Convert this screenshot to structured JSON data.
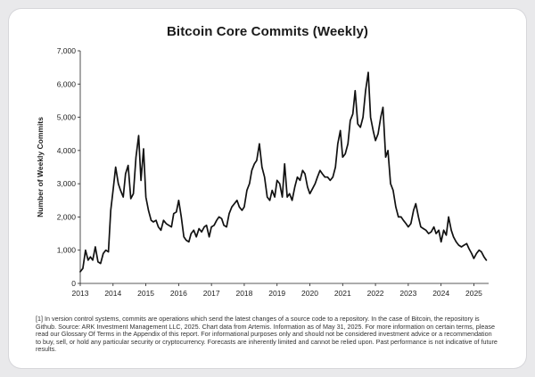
{
  "chart_data": {
    "type": "line",
    "title": "Bitcoin Core Commits (Weekly)",
    "xlabel": "",
    "ylabel": "Number of Weekly Commits",
    "ylim": [
      0,
      7000
    ],
    "xlim": [
      2013,
      2025.45
    ],
    "yticks": [
      0,
      1000,
      2000,
      3000,
      4000,
      5000,
      6000,
      7000
    ],
    "ytick_labels": [
      "0",
      "1,000",
      "2,000",
      "3,000",
      "4,000",
      "5,000",
      "6,000",
      "7,000"
    ],
    "xticks": [
      2013,
      2014,
      2015,
      2016,
      2017,
      2018,
      2019,
      2020,
      2021,
      2022,
      2023,
      2024,
      2025
    ],
    "xtick_labels": [
      "2013",
      "2014",
      "2015",
      "2016",
      "2017",
      "2018",
      "2019",
      "2020",
      "2021",
      "2022",
      "2023",
      "2024",
      "2025"
    ],
    "grid": false,
    "line_color": "#111111",
    "series": [
      {
        "name": "Weekly Commits",
        "x": [
          2013.0,
          2013.08,
          2013.16,
          2013.24,
          2013.31,
          2013.38,
          2013.46,
          2013.54,
          2013.62,
          2013.7,
          2013.78,
          2013.86,
          2013.93,
          2014.0,
          2014.08,
          2014.16,
          2014.23,
          2014.31,
          2014.38,
          2014.46,
          2014.54,
          2014.62,
          2014.7,
          2014.78,
          2014.85,
          2014.93,
          2015.0,
          2015.08,
          2015.16,
          2015.23,
          2015.31,
          2015.38,
          2015.46,
          2015.54,
          2015.62,
          2015.7,
          2015.78,
          2015.85,
          2015.93,
          2016.0,
          2016.08,
          2016.16,
          2016.23,
          2016.31,
          2016.38,
          2016.46,
          2016.54,
          2016.62,
          2016.7,
          2016.78,
          2016.85,
          2016.93,
          2017.0,
          2017.08,
          2017.16,
          2017.23,
          2017.31,
          2017.38,
          2017.46,
          2017.54,
          2017.62,
          2017.7,
          2017.78,
          2017.85,
          2017.93,
          2018.0,
          2018.08,
          2018.16,
          2018.23,
          2018.31,
          2018.38,
          2018.46,
          2018.54,
          2018.62,
          2018.7,
          2018.78,
          2018.85,
          2018.93,
          2019.0,
          2019.08,
          2019.16,
          2019.23,
          2019.31,
          2019.38,
          2019.46,
          2019.54,
          2019.62,
          2019.7,
          2019.78,
          2019.85,
          2019.93,
          2020.0,
          2020.08,
          2020.16,
          2020.23,
          2020.31,
          2020.38,
          2020.46,
          2020.54,
          2020.62,
          2020.7,
          2020.78,
          2020.85,
          2020.93,
          2021.0,
          2021.08,
          2021.16,
          2021.23,
          2021.31,
          2021.38,
          2021.46,
          2021.54,
          2021.62,
          2021.7,
          2021.78,
          2021.85,
          2021.93,
          2022.0,
          2022.08,
          2022.16,
          2022.23,
          2022.31,
          2022.38,
          2022.46,
          2022.54,
          2022.62,
          2022.7,
          2022.78,
          2022.85,
          2022.93,
          2023.0,
          2023.08,
          2023.16,
          2023.23,
          2023.31,
          2023.38,
          2023.46,
          2023.54,
          2023.62,
          2023.7,
          2023.78,
          2023.85,
          2023.93,
          2024.0,
          2024.08,
          2024.16,
          2024.23,
          2024.31,
          2024.38,
          2024.46,
          2024.54,
          2024.62,
          2024.7,
          2024.78,
          2024.85,
          2024.93,
          2025.0,
          2025.08,
          2025.16,
          2025.23,
          2025.31,
          2025.38
        ],
        "values": [
          350,
          450,
          1000,
          700,
          800,
          700,
          1100,
          650,
          600,
          900,
          1000,
          950,
          2200,
          2800,
          3500,
          3000,
          2800,
          2600,
          3300,
          3550,
          2550,
          2700,
          3800,
          4450,
          3100,
          4050,
          2600,
          2200,
          1900,
          1850,
          1900,
          1700,
          1600,
          1900,
          1800,
          1750,
          1700,
          2100,
          2150,
          2500,
          2000,
          1400,
          1300,
          1250,
          1500,
          1600,
          1400,
          1650,
          1550,
          1700,
          1750,
          1400,
          1700,
          1750,
          1900,
          2000,
          1950,
          1750,
          1700,
          2100,
          2300,
          2400,
          2500,
          2300,
          2200,
          2300,
          2800,
          3000,
          3400,
          3600,
          3700,
          4200,
          3500,
          3200,
          2600,
          2500,
          2800,
          2600,
          3100,
          3000,
          2600,
          3600,
          2600,
          2700,
          2500,
          2900,
          3200,
          3100,
          3400,
          3300,
          2900,
          2700,
          2850,
          3000,
          3200,
          3400,
          3300,
          3200,
          3200,
          3100,
          3200,
          3500,
          4200,
          4600,
          3800,
          3900,
          4200,
          4900,
          5100,
          5800,
          4800,
          4700,
          5000,
          5800,
          6350,
          5000,
          4600,
          4300,
          4500,
          5000,
          5300,
          3800,
          4000,
          3000,
          2800,
          2300,
          2000,
          2000,
          1900,
          1800,
          1700,
          1800,
          2200,
          2400,
          2000,
          1700,
          1650,
          1600,
          1500,
          1550,
          1700,
          1500,
          1600,
          1250,
          1600,
          1450,
          2000,
          1600,
          1400,
          1250,
          1150,
          1100,
          1150,
          1200,
          1050,
          900,
          750,
          900,
          1000,
          950,
          800,
          700
        ]
      }
    ],
    "footnote": "[1] In version control systems, commits are operations which send the latest changes of a source code to a repository. In the case of Bitcoin, the repository is Github. Source: ARK Investment Management LLC, 2025. Chart data from Artemis. Information as of May 31, 2025. For more information on certain terms, please read our Glossary Of Terms in the Appendix of this report. For informational purposes only and should not be considered investment advice or a recommendation to buy, sell, or hold any particular security or cryptocurrency. Forecasts are inherently limited and cannot be relied upon. Past performance is not indicative of future results."
  }
}
